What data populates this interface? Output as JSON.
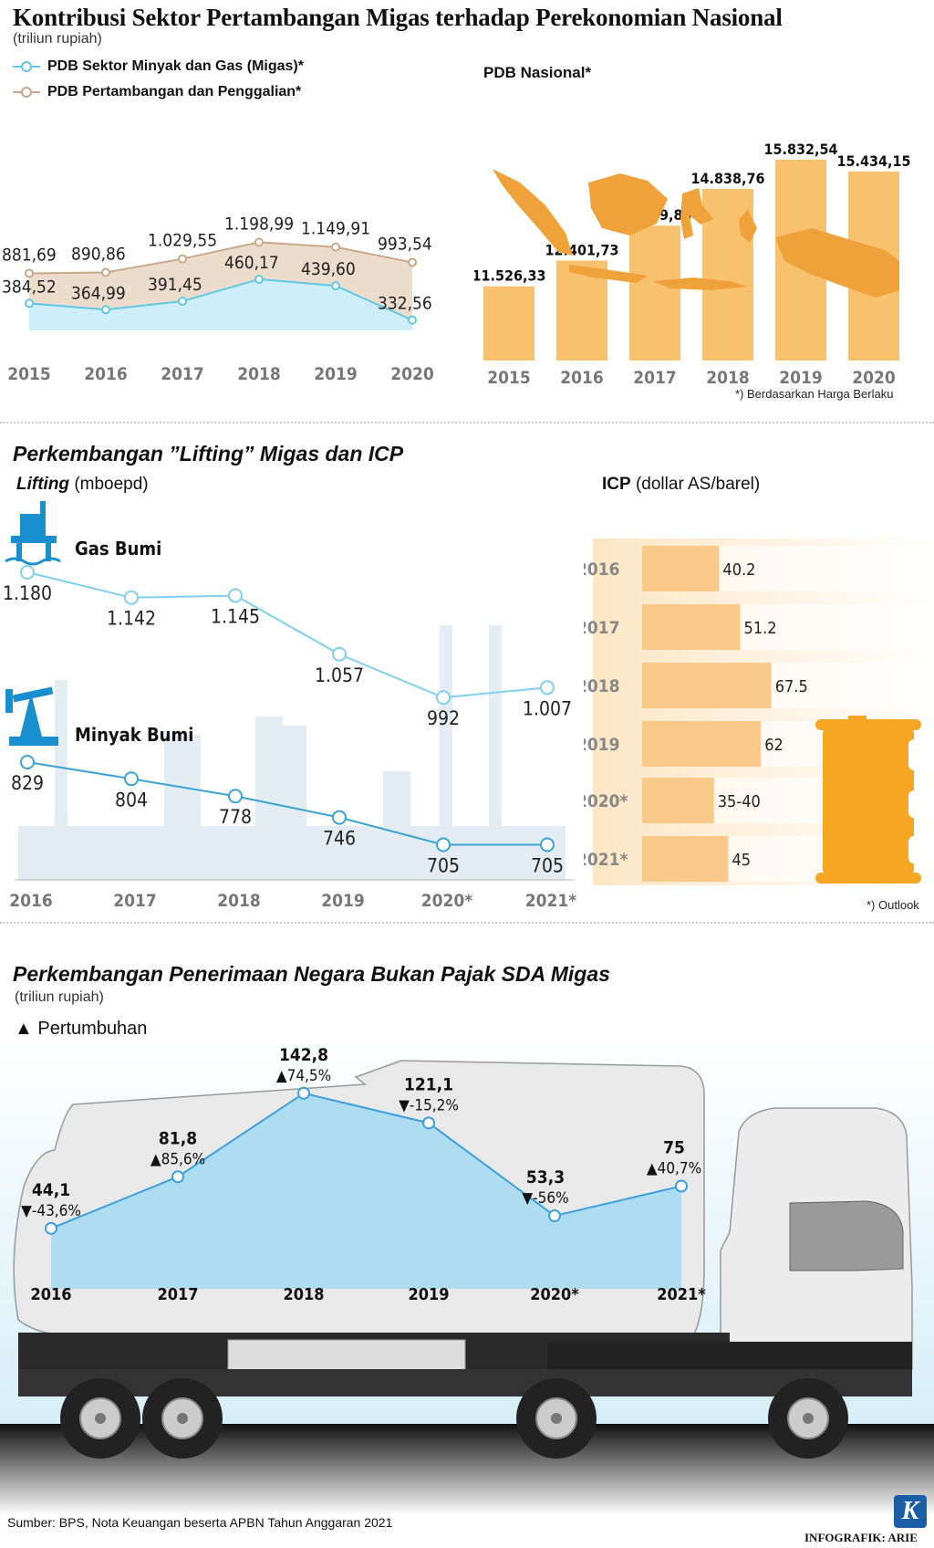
{
  "main_title": "Kontribusi Sektor Pertambangan Migas terhadap Perekonomian Nasional",
  "unit_trillion": "(triliun rupiah)",
  "legend": {
    "migas": "PDB Sektor Minyak dan Gas (Migas)*",
    "tambang": "PDB Pertambangan dan Penggalian*"
  },
  "pdb_nasional_title": "PDB Nasional*",
  "pdb_note": "*) Berdasarkan Harga Berlaku",
  "lifting_section_title": "Perkembangan ”Lifting” Migas dan ICP",
  "lifting_label": "Lifting",
  "lifting_unit": "(mboepd)",
  "icp_label": "ICP",
  "icp_unit": "(dollar AS/barel)",
  "gas_label": "Gas Bumi",
  "oil_label": "Minyak Bumi",
  "outlook_note": "*) Outlook",
  "pnbp_section_title": "Perkembangan Penerimaan Negara Bukan Pajak SDA Migas",
  "pnbp_unit": "(triliun rupiah)",
  "growth_legend": "▲ Pertumbuhan",
  "source": "Sumber: BPS, Nota Keuangan beserta APBN Tahun Anggaran 2021",
  "credit": "INFOGRAFIK: ARIE",
  "logo_letter": "K",
  "colors": {
    "migas_line": "#5ec8e6",
    "migas_fill": "#cdeefa",
    "tambang_line": "#c7a98a",
    "tambang_fill": "#ecdccb",
    "bar": "#f8c16e",
    "map": "#f0a23a",
    "gas_line": "#7fcfee",
    "oil_line": "#3ba3d4",
    "pnbp_fill": "#a7dcf2",
    "pnbp_line": "#3b9fe0"
  },
  "chart_data": [
    {
      "type": "area",
      "categories": [
        "2015",
        "2016",
        "2017",
        "2018",
        "2019",
        "2020"
      ],
      "series": [
        {
          "name": "PDB Pertambangan dan Penggalian*",
          "values": [
            881.69,
            890.86,
            1029.55,
            1198.99,
            1149.91,
            993.54
          ],
          "labels": [
            "881,69",
            "890,86",
            "1.029,55",
            "1.198,99",
            "1.149,91",
            "993,54"
          ]
        },
        {
          "name": "PDB Sektor Minyak dan Gas (Migas)*",
          "values": [
            384.52,
            364.99,
            391.45,
            460.17,
            439.6,
            332.56
          ],
          "labels": [
            "384,52",
            "364,99",
            "391,45",
            "460,17",
            "439,60",
            "332,56"
          ]
        }
      ]
    },
    {
      "type": "bar",
      "title": "PDB Nasional*",
      "categories": [
        "2015",
        "2016",
        "2017",
        "2018",
        "2019",
        "2020"
      ],
      "values": [
        11526.33,
        12401.73,
        13589.83,
        14838.76,
        15832.54,
        15434.15
      ],
      "labels": [
        "11.526,33",
        "12.401,73",
        "13.589,83",
        "14.838,76",
        "15.832,54",
        "15.434,15"
      ]
    },
    {
      "type": "line",
      "categories": [
        "2016",
        "2017",
        "2018",
        "2019",
        "2020*",
        "2021*"
      ],
      "series": [
        {
          "name": "Gas Bumi",
          "values": [
            1180,
            1142,
            1145,
            1057,
            992,
            1007
          ],
          "labels": [
            "1.180",
            "1.142",
            "1.145",
            "1.057",
            "992",
            "1.007"
          ]
        },
        {
          "name": "Minyak Bumi",
          "values": [
            829,
            804,
            778,
            746,
            705,
            705
          ],
          "labels": [
            "829",
            "804",
            "778",
            "746",
            "705",
            "705"
          ]
        }
      ]
    },
    {
      "type": "bar",
      "orientation": "horizontal",
      "categories": [
        "2016",
        "2017",
        "2018",
        "2019",
        "2020*",
        "2021*"
      ],
      "values": [
        40.2,
        51.2,
        67.5,
        62,
        37.5,
        45
      ],
      "labels": [
        "40.2",
        "51.2",
        "67.5",
        "62",
        "35-40",
        "45"
      ]
    },
    {
      "type": "area",
      "categories": [
        "2016",
        "2017",
        "2018",
        "2019",
        "2020*",
        "2021*"
      ],
      "values": [
        44.1,
        81.8,
        142.8,
        121.1,
        53.3,
        75
      ],
      "labels": [
        "44,1",
        "81,8",
        "142,8",
        "121,1",
        "53,3",
        "75"
      ],
      "growth": [
        "▼-43,6%",
        "▲85,6%",
        "▲74,5%",
        "▼-15,2%",
        "▼-56%",
        "▲40,7%"
      ]
    }
  ]
}
